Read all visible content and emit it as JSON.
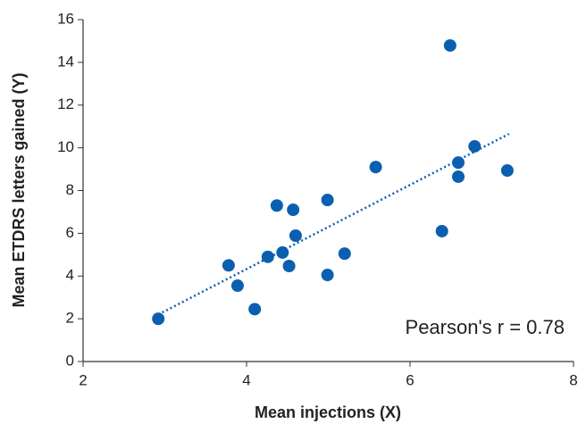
{
  "chart_data": {
    "type": "scatter",
    "x_label": "Mean injections (X)",
    "y_label": "Mean ETDRS letters gained (Y)",
    "annotation": "Pearson's r = 0.78",
    "color": "#0b5fb0",
    "x": [
      2.92,
      3.78,
      3.89,
      4.1,
      4.26,
      4.37,
      4.44,
      4.52,
      4.57,
      4.6,
      4.99,
      4.99,
      5.2,
      5.58,
      6.39,
      6.49,
      6.59,
      6.59,
      6.79,
      7.19
    ],
    "values": [
      2.0,
      4.5,
      3.55,
      2.45,
      4.9,
      7.3,
      5.1,
      4.47,
      7.1,
      5.89,
      7.56,
      4.05,
      5.05,
      9.1,
      6.1,
      14.79,
      9.31,
      8.65,
      10.07,
      8.94
    ],
    "trendline": {
      "x": [
        2.92,
        7.21
      ],
      "y": [
        2.2,
        10.65
      ]
    },
    "xlim": [
      2,
      8
    ],
    "xticks": [
      2,
      4,
      6,
      8
    ],
    "ylim": [
      0,
      16
    ],
    "yticks": [
      0,
      2,
      4,
      6,
      8,
      10,
      12,
      14,
      16
    ],
    "grid": false
  }
}
